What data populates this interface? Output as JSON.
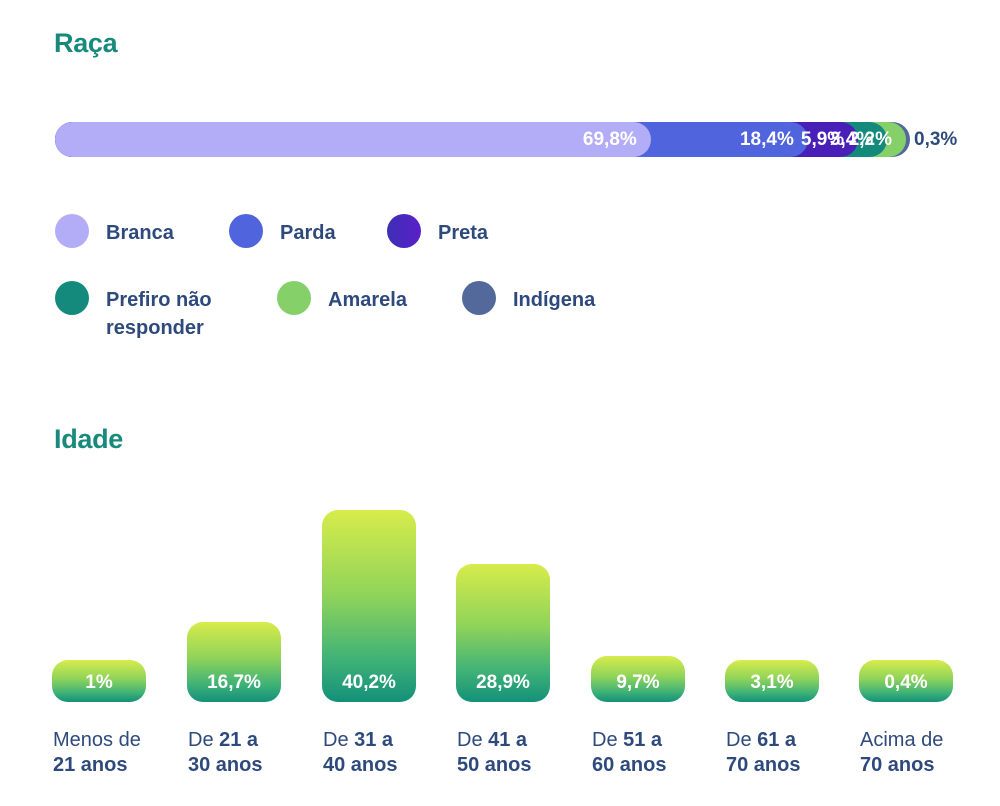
{
  "chart_data": [
    {
      "type": "bar",
      "orientation": "horizontal-stacked",
      "title": "Raça",
      "series": [
        {
          "name": "Branca",
          "value": 69.8,
          "label": "69,8%",
          "color": "#b3acf7"
        },
        {
          "name": "Parda",
          "value": 18.4,
          "label": "18,4%",
          "color": "#4f64dd"
        },
        {
          "name": "Preta",
          "value": 5.9,
          "label": "5,9%",
          "color": "#4a1fb8"
        },
        {
          "name": "Prefiro não responder",
          "value": 3.4,
          "label": "3,4%",
          "color": "#138a7c"
        },
        {
          "name": "Amarela",
          "value": 2.2,
          "label": "2,2%",
          "color": "#86d06a"
        },
        {
          "name": "Indígena",
          "value": 0.3,
          "label": "0,3%",
          "color": "#53689b"
        }
      ],
      "legend": [
        {
          "name": "Branca",
          "line1": "Branca",
          "line2": ""
        },
        {
          "name": "Parda",
          "line1": "Parda",
          "line2": ""
        },
        {
          "name": "Preta",
          "line1": "Preta",
          "line2": ""
        },
        {
          "name": "Prefiro não responder",
          "line1": "Prefiro não",
          "line2": "responder"
        },
        {
          "name": "Amarela",
          "line1": "Amarela",
          "line2": ""
        },
        {
          "name": "Indígena",
          "line1": "Indígena",
          "line2": ""
        }
      ]
    },
    {
      "type": "bar",
      "title": "Idade",
      "categories": [
        "Menos de 21 anos",
        "De 21 a 30 anos",
        "De 31 a 40 anos",
        "De 41 a 50 anos",
        "De 51 a 60 anos",
        "De 61 a 70 anos",
        "Acima de 70 anos"
      ],
      "category_lines": [
        [
          "Menos de",
          "21 anos"
        ],
        [
          "De 21 a",
          "30 anos"
        ],
        [
          "De 31 a",
          "40 anos"
        ],
        [
          "De 41 a",
          "50 anos"
        ],
        [
          "De 51 a",
          "60 anos"
        ],
        [
          "De 61 a",
          "70 anos"
        ],
        [
          "Acima de",
          "70 anos"
        ]
      ],
      "values": [
        1,
        16.7,
        40.2,
        28.9,
        9.7,
        3.1,
        0.4
      ],
      "value_labels": [
        "1%",
        "16,7%",
        "40,2%",
        "28,9%",
        "9,7%",
        "3,1%",
        "0,4%"
      ],
      "xlabel": "",
      "ylabel": "",
      "ylim": [
        0,
        40.2
      ]
    }
  ]
}
